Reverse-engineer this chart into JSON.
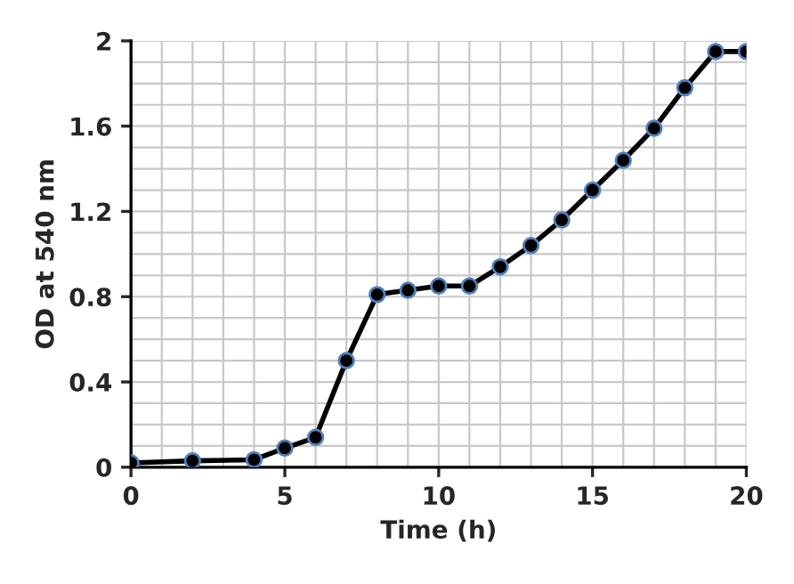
{
  "chart_data": {
    "type": "line",
    "xlabel": "Time (h)",
    "ylabel": "OD at 540 nm",
    "x": [
      0,
      2,
      4,
      5,
      6,
      7,
      8,
      9,
      10,
      11,
      12,
      13,
      14,
      15,
      16,
      17,
      18,
      19,
      20
    ],
    "series": [
      {
        "color": "#000000",
        "values": [
          0.02,
          0.03,
          0.035,
          0.09,
          0.14,
          0.5,
          0.81,
          0.83,
          0.85,
          0.85,
          0.94,
          1.04,
          1.16,
          1.3,
          1.44,
          1.59,
          1.78,
          1.95,
          1.95
        ]
      }
    ],
    "xlim": [
      0,
      20
    ],
    "xticks": [
      0,
      5,
      10,
      15,
      20
    ],
    "ylim": [
      0,
      2
    ],
    "yticks": [
      0,
      {
        "value": 0.4,
        "label": "0.4"
      },
      {
        "value": 0.8,
        "label": "0.8"
      },
      {
        "value": 1.2,
        "label": "1.2"
      },
      {
        "value": 1.6,
        "label": "1.6"
      },
      2
    ],
    "grid": true,
    "marker": "circle",
    "line_style": "solid",
    "legend": false
  }
}
